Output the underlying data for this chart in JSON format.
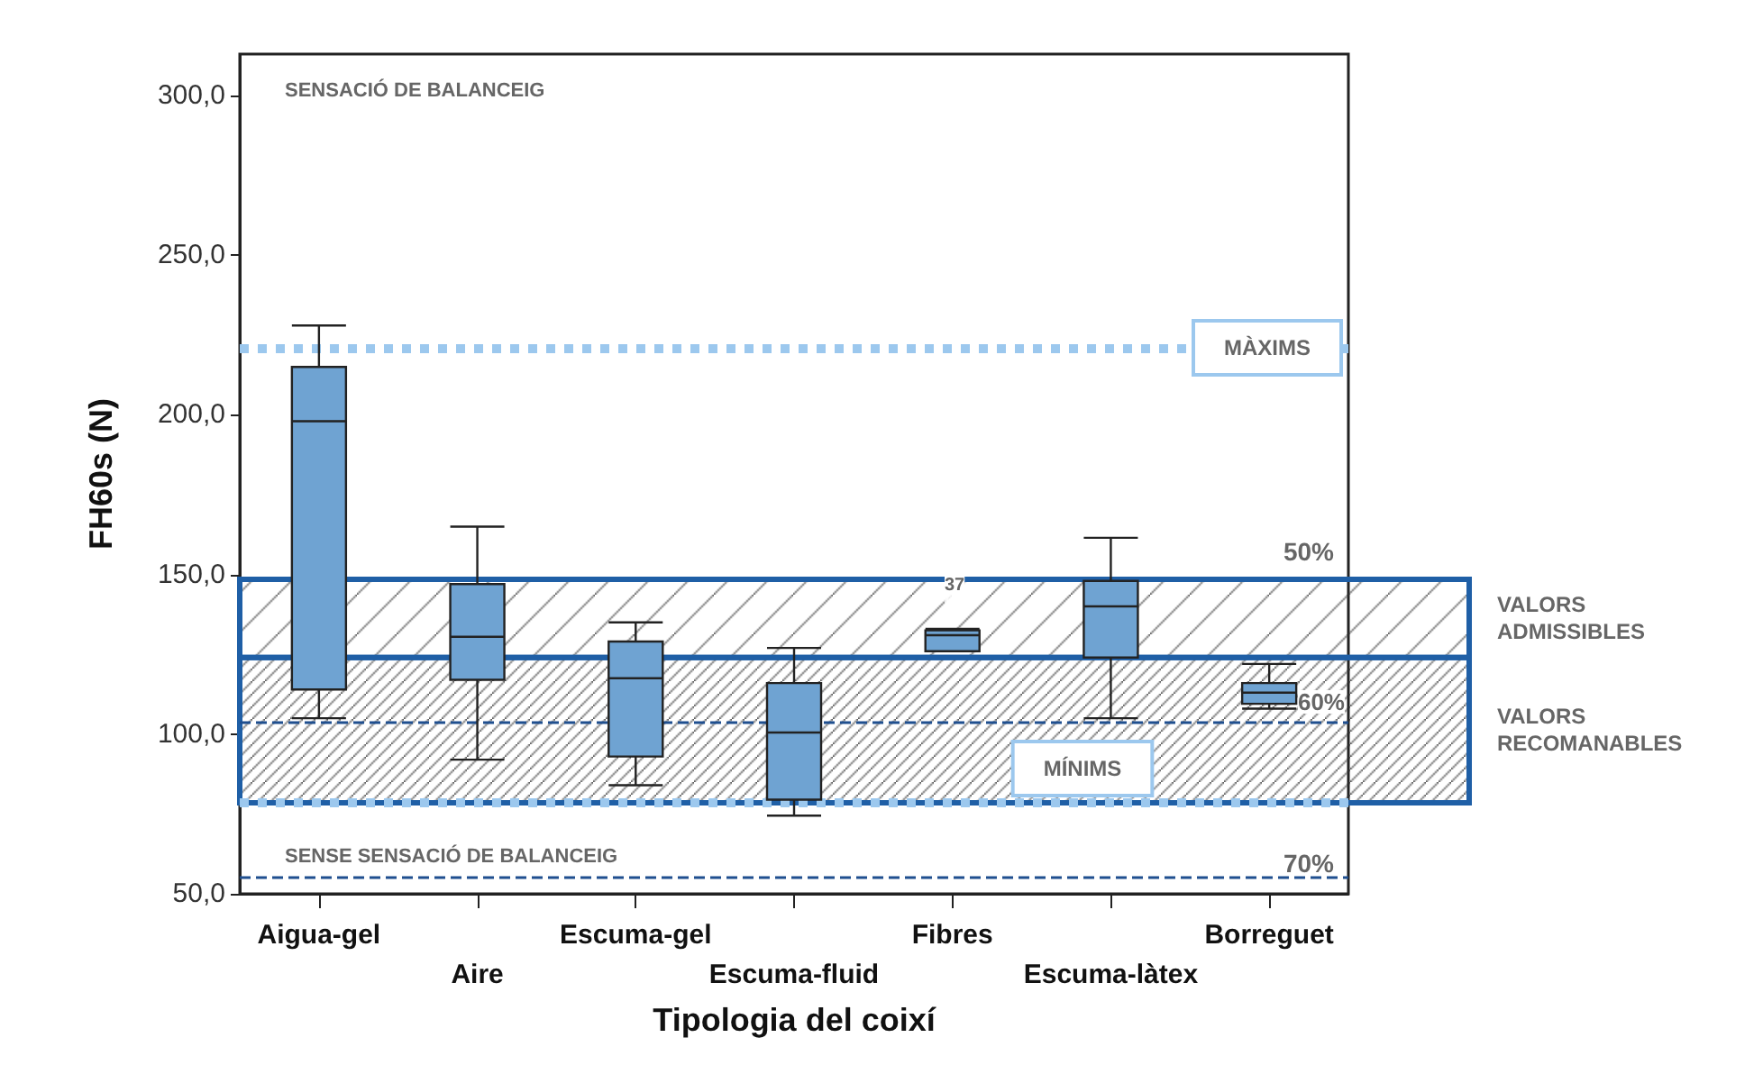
{
  "chart_data": {
    "type": "box",
    "xlabel": "Tipologia del coixí",
    "ylabel": "FH60s (N)",
    "categories": [
      "Aigua-gel",
      "Aire",
      "Escuma-gel",
      "Escuma-fluid",
      "Fibres",
      "Escuma-làtex",
      "Borreguet"
    ],
    "series": [
      {
        "color": "#6fa3d2",
        "boxes": [
          {
            "low": 105,
            "q1": 114,
            "median": 198,
            "q3": 215,
            "high": 228
          },
          {
            "low": 92,
            "q1": 117,
            "median": 130.5,
            "q3": 147,
            "high": 165
          },
          {
            "low": 84,
            "q1": 93,
            "median": 117.5,
            "q3": 129,
            "high": 135
          },
          {
            "low": 74.5,
            "q1": 79.5,
            "median": 100.5,
            "q3": 116,
            "high": 127
          },
          {
            "low": 126,
            "q1": 126,
            "median": 131,
            "q3": 132.5,
            "high": 133,
            "outliers": [
              142
            ]
          },
          {
            "low": 105,
            "q1": 124,
            "median": 140,
            "q3": 148,
            "high": 161.5
          },
          {
            "low": 108,
            "q1": 109.5,
            "median": 113,
            "q3": 116,
            "high": 122
          }
        ]
      }
    ],
    "ylim": [
      50,
      313
    ],
    "yticks": [
      {
        "value": 50,
        "label": "50,0"
      },
      {
        "value": 100,
        "label": "100,0"
      },
      {
        "value": 150,
        "label": "150,0"
      },
      {
        "value": 200,
        "label": "200,0"
      },
      {
        "value": 250,
        "label": "250,0"
      },
      {
        "value": 300,
        "label": "300,0"
      }
    ],
    "ref_lines": [
      {
        "axis": "y",
        "value": 221,
        "label": "MÀXIMS",
        "color": "#9cc8ee",
        "line_style": "dotted"
      },
      {
        "axis": "y",
        "value": 78.5,
        "label": "MÍNIMS",
        "color": "#9cc8ee",
        "line_style": "dotted"
      },
      {
        "axis": "y",
        "value": 104,
        "color": "#1f4f8f",
        "line_style": "dashed"
      },
      {
        "axis": "y",
        "value": 55.5,
        "color": "#1f4f8f",
        "line_style": "dashed"
      }
    ],
    "bands": [
      {
        "axis": "y",
        "from": 124,
        "to": 148.5,
        "label": "VALORS\nADMISSIBLES",
        "color": "#1f5fa6"
      },
      {
        "axis": "y",
        "from": 78.5,
        "to": 124,
        "label": "VALORS\nRECOMANABLES",
        "color": "#1f5fa6"
      }
    ],
    "annotations": [
      "SENSACIÓ DE BALANCEIG",
      "SENSE SENSACIÓ DE BALANCEIG",
      "37",
      "50%",
      "60%",
      "70%"
    ],
    "grid": false
  }
}
